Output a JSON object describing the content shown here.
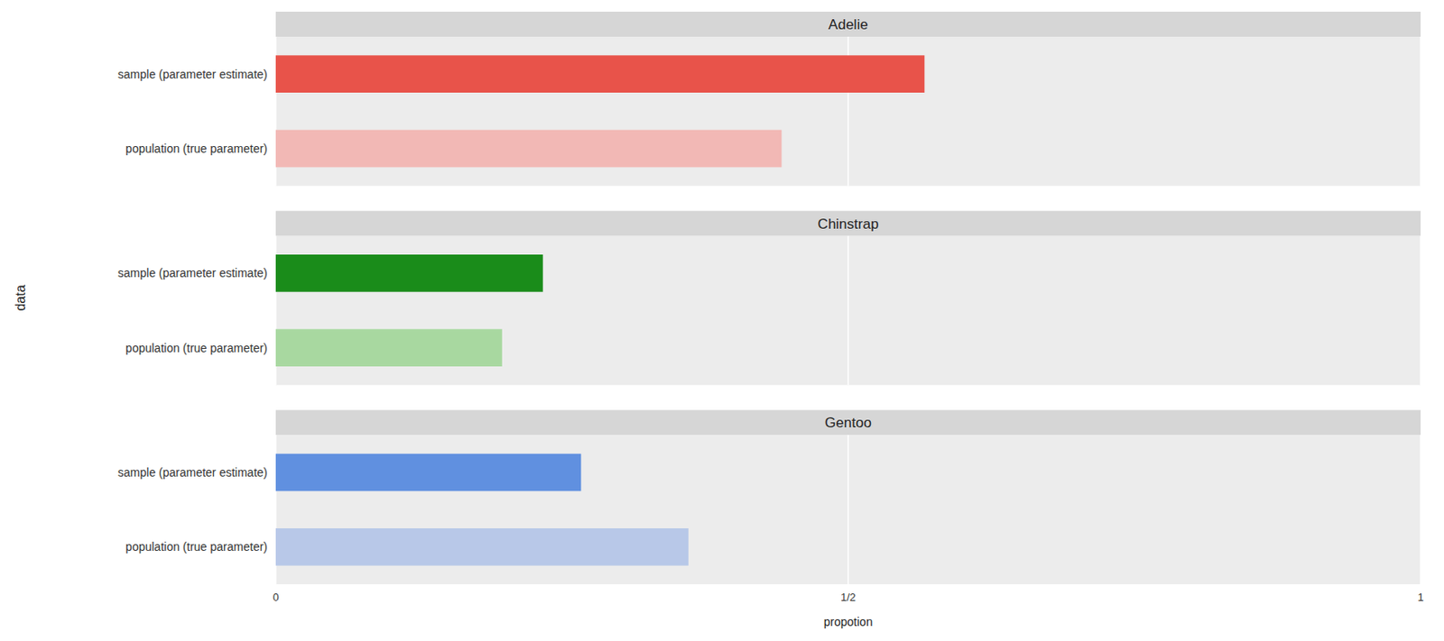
{
  "chart_data": [
    {
      "type": "bar",
      "orientation": "horizontal",
      "title": "Adelie",
      "categories": [
        "sample (parameter estimate)",
        "population (true parameter)"
      ],
      "values": [
        0.5666666666666667,
        0.4418604651162791
      ],
      "colors": [
        "#E8534A",
        "#F2B8B5"
      ],
      "xlim": [
        0,
        1
      ],
      "xticks": [
        0,
        {
          "value": 0.5,
          "label": "1/2"
        },
        1
      ],
      "grid": true,
      "tick_labels": "y"
    },
    {
      "type": "bar",
      "orientation": "horizontal",
      "title": "Chinstrap",
      "ylabel": "data",
      "categories": [
        "sample (parameter estimate)",
        "population (true parameter)"
      ],
      "values": [
        0.23333333333333334,
        0.19767441860465115
      ],
      "colors": [
        "#1A8C1A",
        "#A8D8A0"
      ],
      "xlim": [
        0,
        1
      ],
      "xticks": [
        0,
        {
          "value": 0.5,
          "label": "1/2"
        },
        1
      ],
      "grid": true,
      "tick_labels": "y"
    },
    {
      "type": "bar",
      "orientation": "horizontal",
      "title": "Gentoo",
      "xlabel": "propotion",
      "categories": [
        "sample (parameter estimate)",
        "population (true parameter)"
      ],
      "values": [
        0.26666666666666666,
        0.36046511627906974
      ],
      "colors": [
        "#6090E0",
        "#B8C8E8"
      ],
      "xlim": [
        0,
        1
      ],
      "xticks": [
        0,
        {
          "value": 0.5,
          "label": "1/2"
        },
        1
      ],
      "grid": true
    }
  ]
}
